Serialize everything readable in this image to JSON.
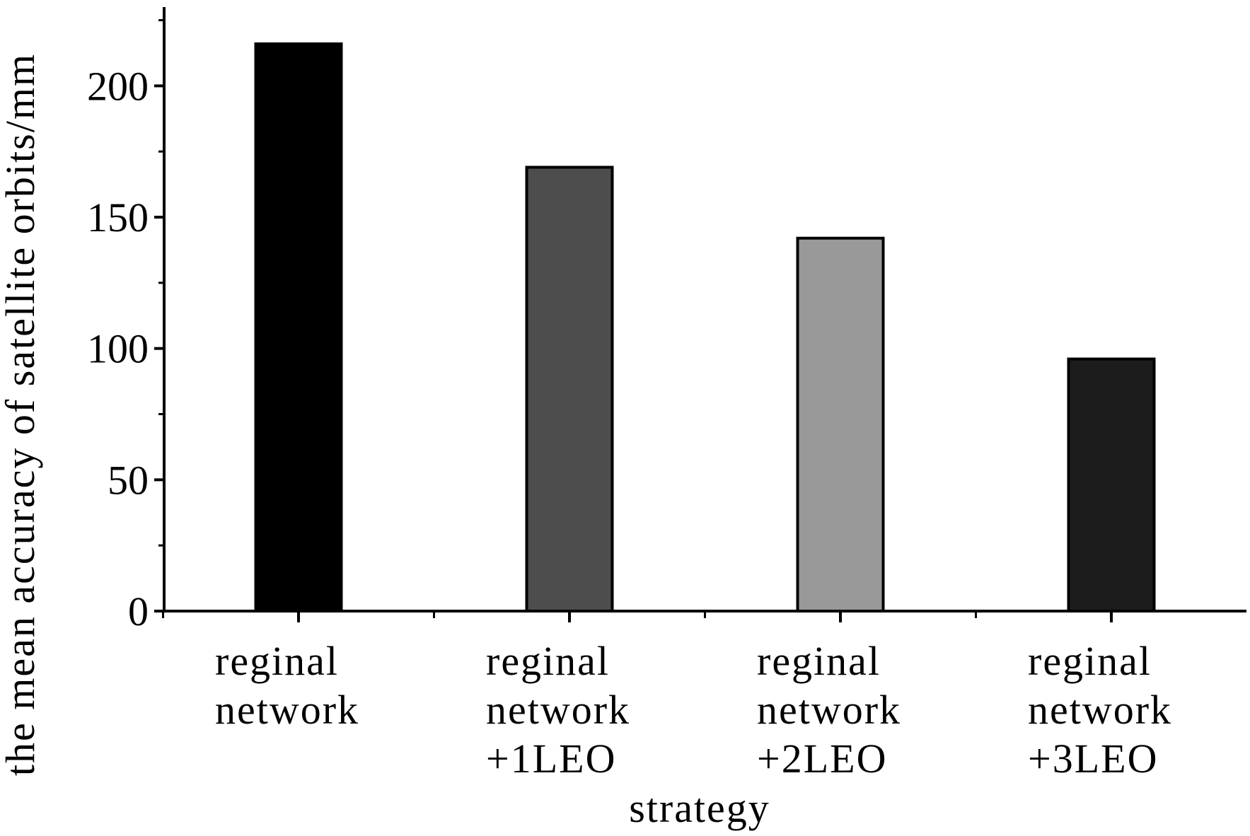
{
  "chart_data": {
    "type": "bar",
    "categories": [
      [
        "reginal",
        "network"
      ],
      [
        "reginal",
        "network",
        "+1LEO"
      ],
      [
        "reginal",
        "network",
        "+2LEO"
      ],
      [
        "reginal",
        "network",
        "+3LEO"
      ]
    ],
    "values": [
      216,
      169,
      142,
      96
    ],
    "colors": [
      "#000000",
      "#4d4d4d",
      "#999999",
      "#1c1c1c"
    ],
    "xlabel": "strategy",
    "ylabel": "the mean accuracy of satellite orbits/mm",
    "ylim": [
      0,
      230
    ],
    "yticks": [
      0,
      50,
      100,
      150,
      200
    ],
    "legend": "none",
    "grid": false
  }
}
